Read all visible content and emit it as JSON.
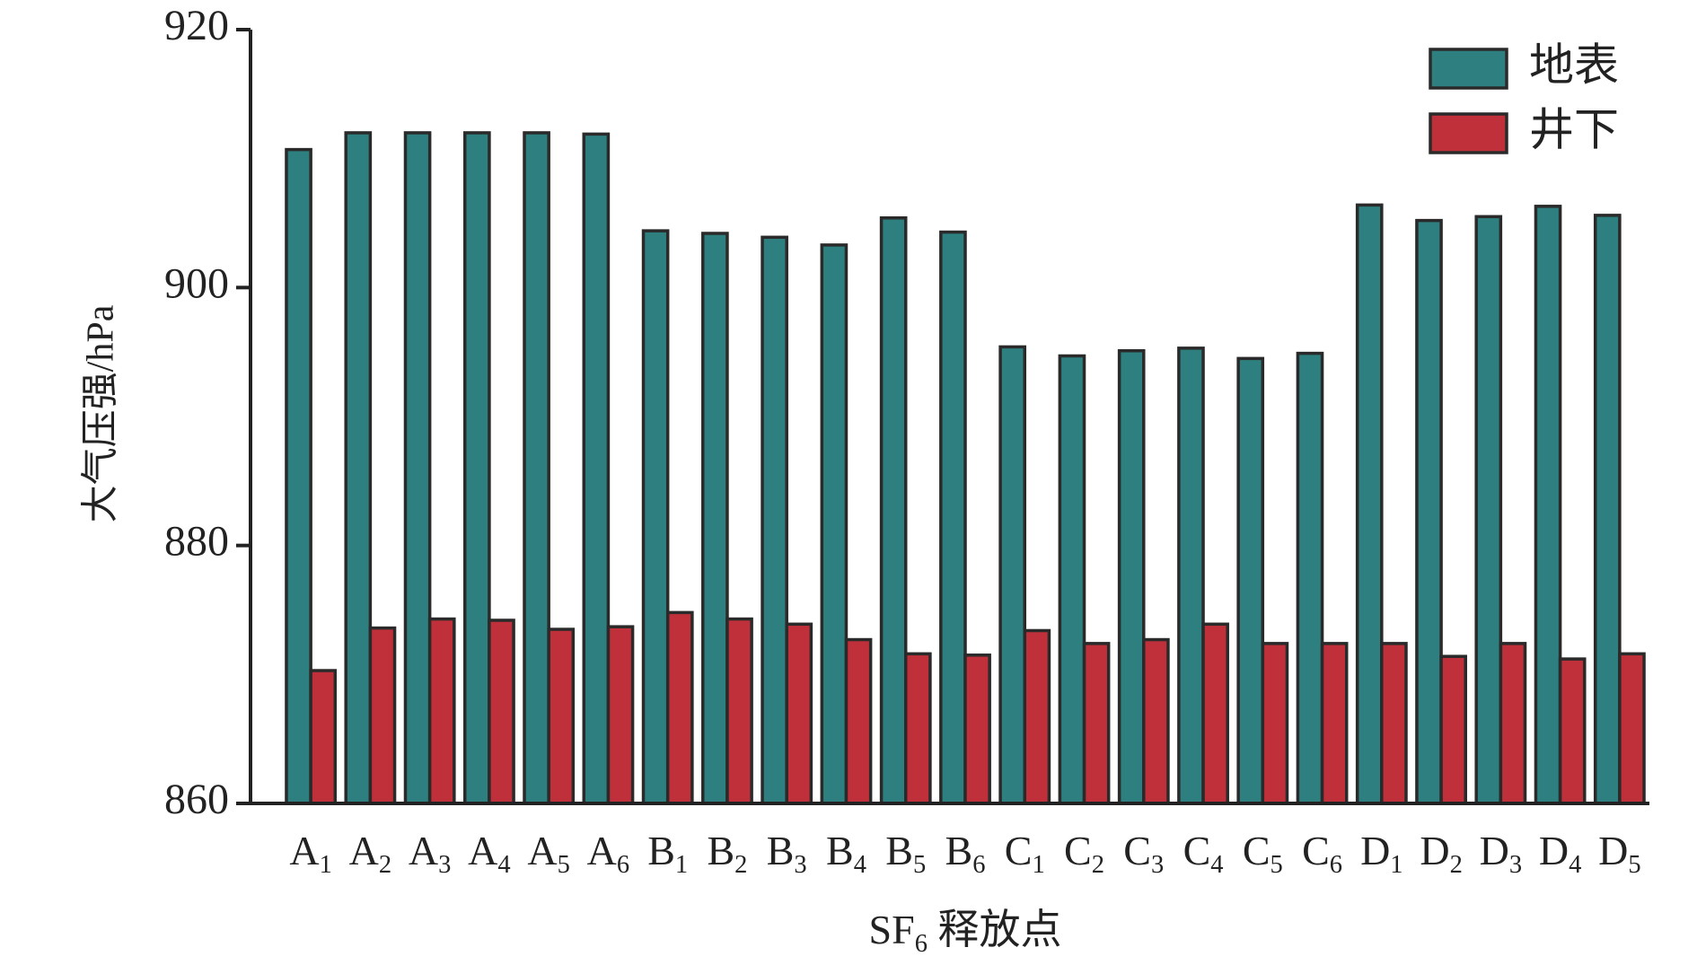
{
  "chart_data": {
    "type": "bar",
    "xlabel": "SF6 释放点",
    "ylabel": "大气压强/hPa",
    "categories": [
      "A1",
      "A2",
      "A3",
      "A4",
      "A5",
      "A6",
      "B1",
      "B2",
      "B3",
      "B4",
      "B5",
      "B6",
      "C1",
      "C2",
      "C3",
      "C4",
      "C5",
      "C6",
      "D1",
      "D2",
      "D3",
      "D4",
      "D5"
    ],
    "series": [
      {
        "name": "地表",
        "color": "#2e8080",
        "values": [
          910.7,
          912.0,
          912.0,
          912.0,
          912.0,
          911.9,
          904.4,
          904.2,
          903.9,
          903.3,
          905.4,
          904.3,
          895.4,
          894.7,
          895.1,
          895.3,
          894.5,
          894.9,
          906.4,
          905.2,
          905.5,
          906.3,
          905.6
        ]
      },
      {
        "name": "井下",
        "color": "#c0303a",
        "values": [
          870.3,
          873.6,
          874.3,
          874.2,
          873.5,
          873.7,
          874.8,
          874.3,
          873.9,
          872.7,
          871.6,
          871.5,
          873.4,
          872.4,
          872.7,
          873.9,
          872.4,
          872.4,
          872.4,
          871.4,
          872.4,
          871.2,
          871.6
        ]
      }
    ],
    "ylim": [
      860,
      920
    ],
    "yticks": [
      860,
      880,
      900,
      920
    ],
    "grid": false,
    "legend": "upper right"
  }
}
